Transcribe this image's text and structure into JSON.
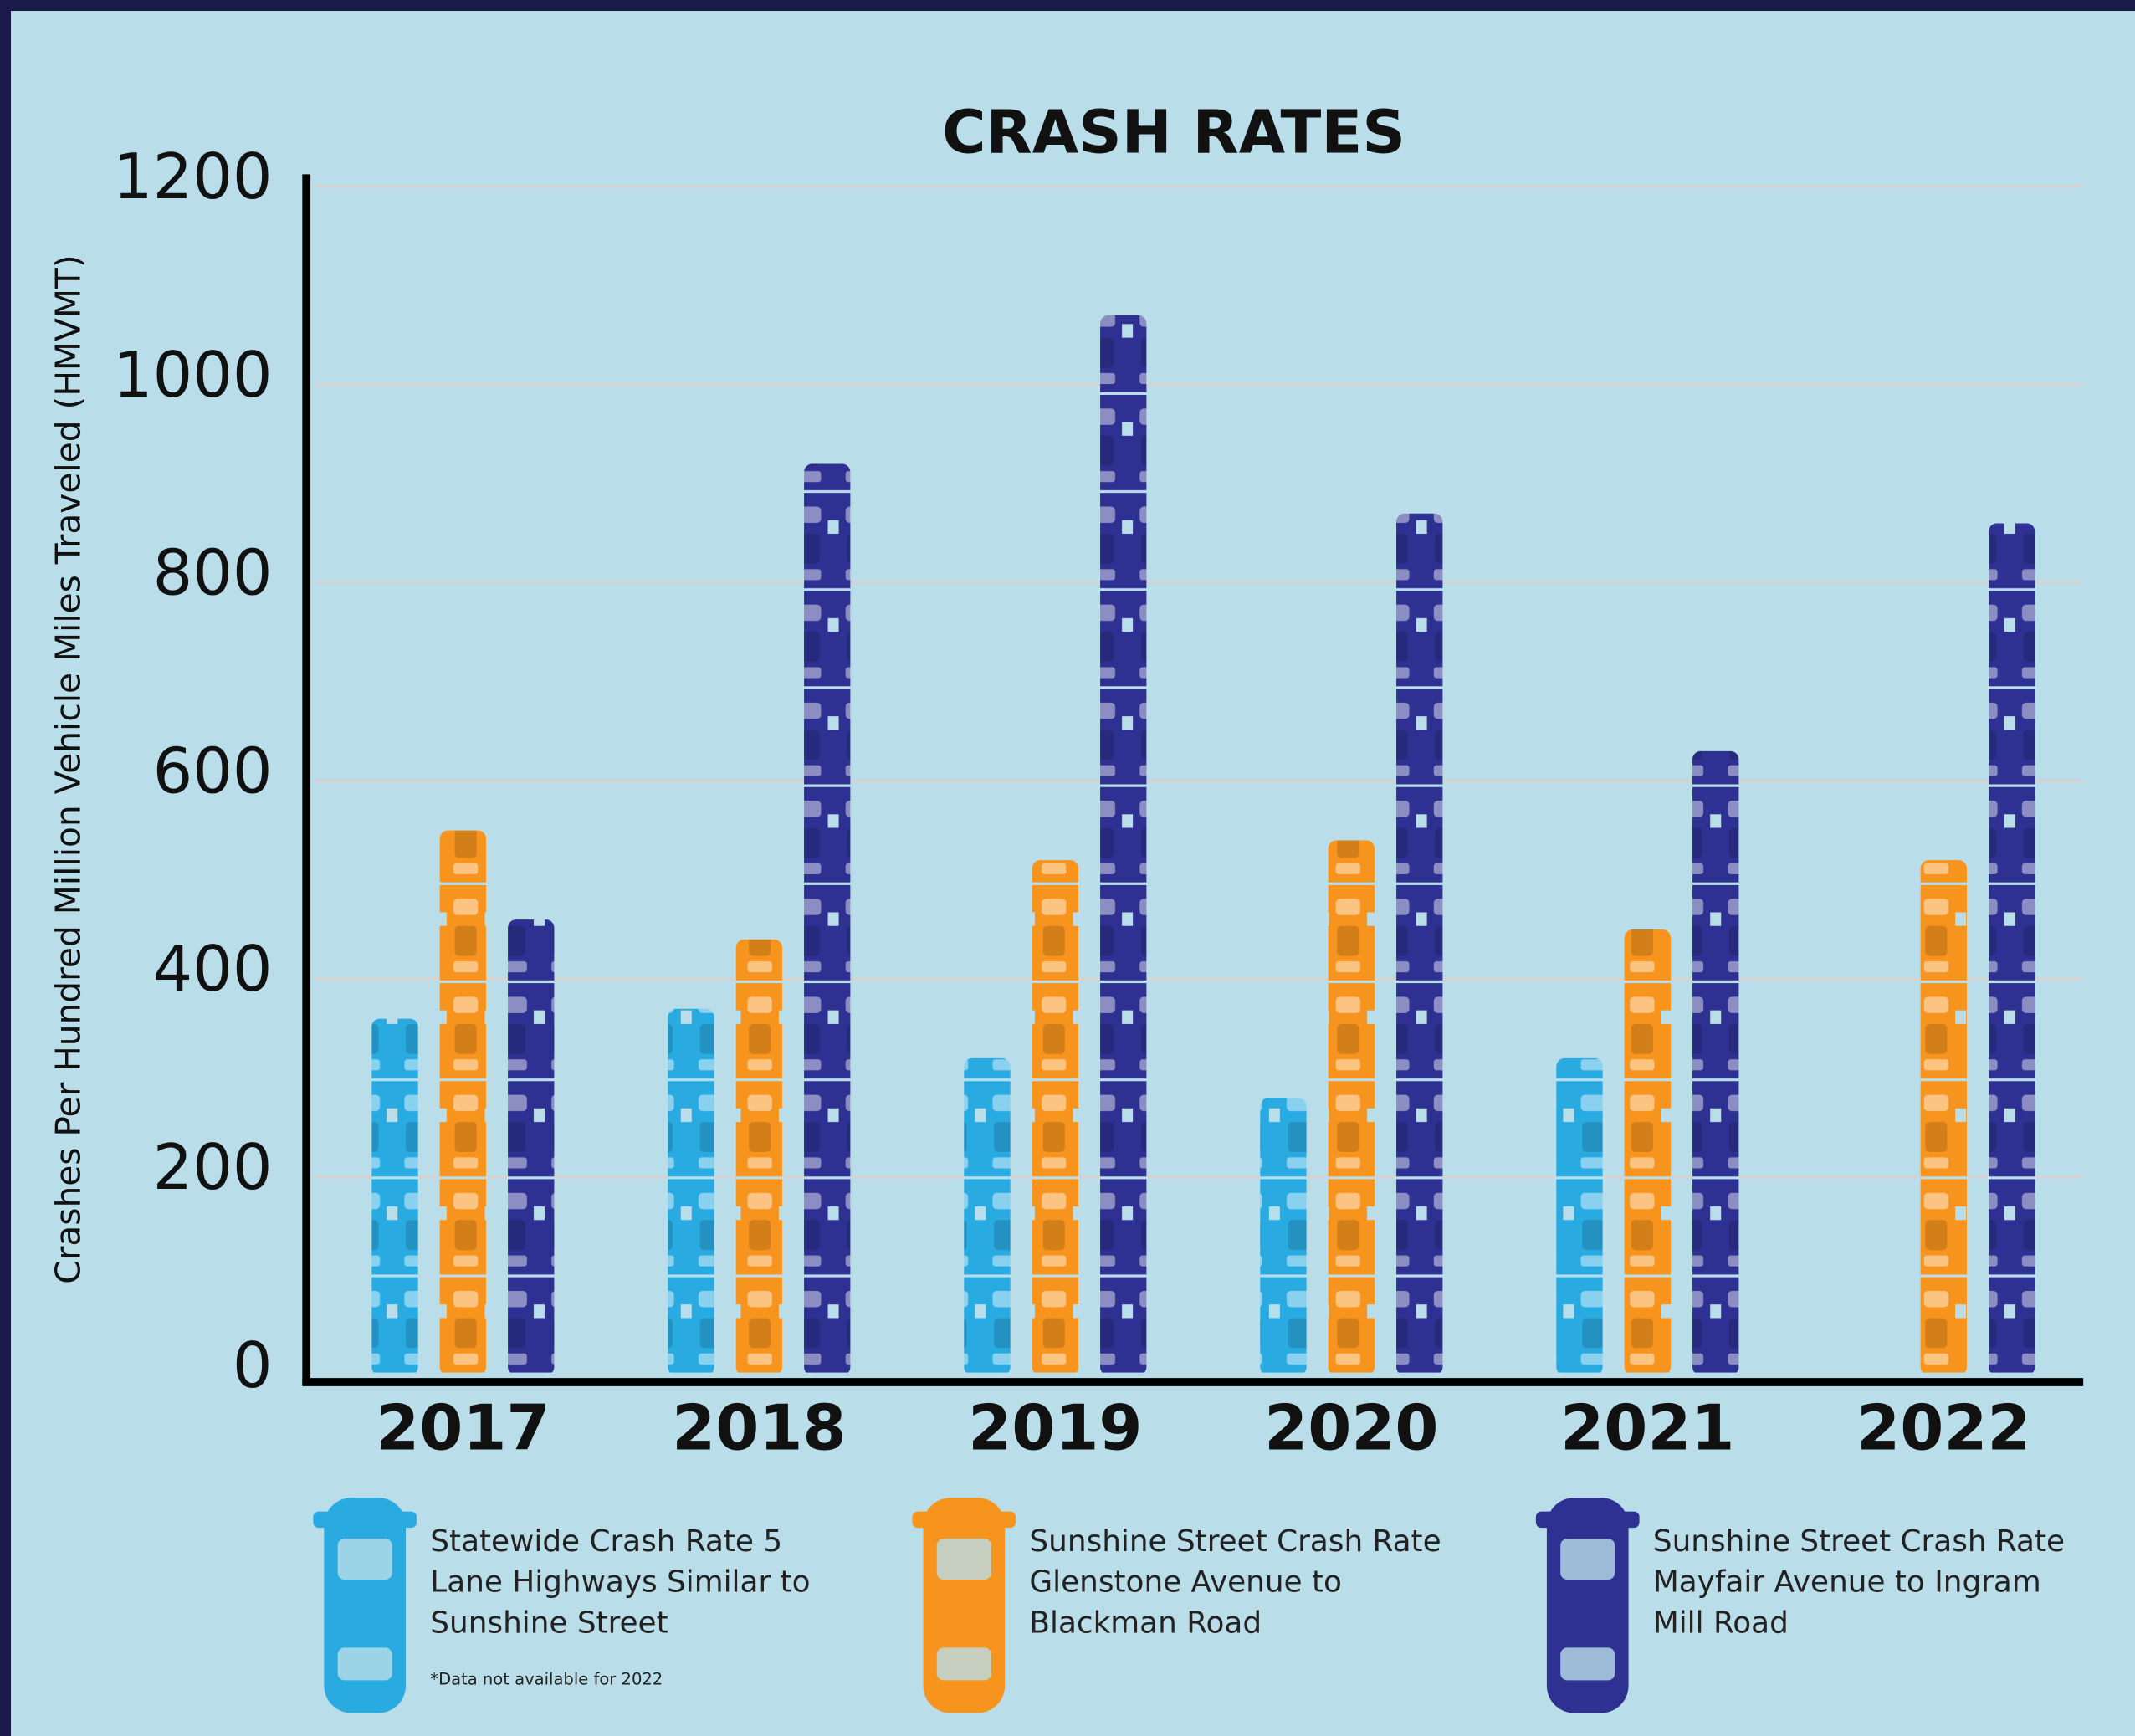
{
  "chart_data": {
    "type": "bar",
    "title": "CRASH RATES",
    "y_label": "Crashes Per Hundred Million Vehicle Miles Traveled (HMVMT)",
    "categories": [
      "2017",
      "2018",
      "2019",
      "2020",
      "2021",
      "2022"
    ],
    "series": [
      {
        "name": "Statewide Crash Rate 5 Lane Highways Similar to Sunshine Street",
        "color": "#29abe2",
        "values": [
          360,
          370,
          320,
          280,
          320,
          null
        ]
      },
      {
        "name": "Sunshine Street Crash Rate Glenstone Avenue to Blackman Road",
        "color": "#f7941d",
        "values": [
          550,
          440,
          520,
          540,
          450,
          520
        ]
      },
      {
        "name": "Sunshine Street Crash Rate Mayfair Avenue to Ingram Mill Road",
        "color": "#2e3192",
        "values": [
          460,
          920,
          1070,
          870,
          630,
          860
        ]
      }
    ],
    "note": "*Data not available for 2022",
    "ylim": [
      0,
      1200
    ],
    "yticks": [
      0,
      200,
      400,
      600,
      800,
      1000,
      1200
    ],
    "grid": true
  }
}
